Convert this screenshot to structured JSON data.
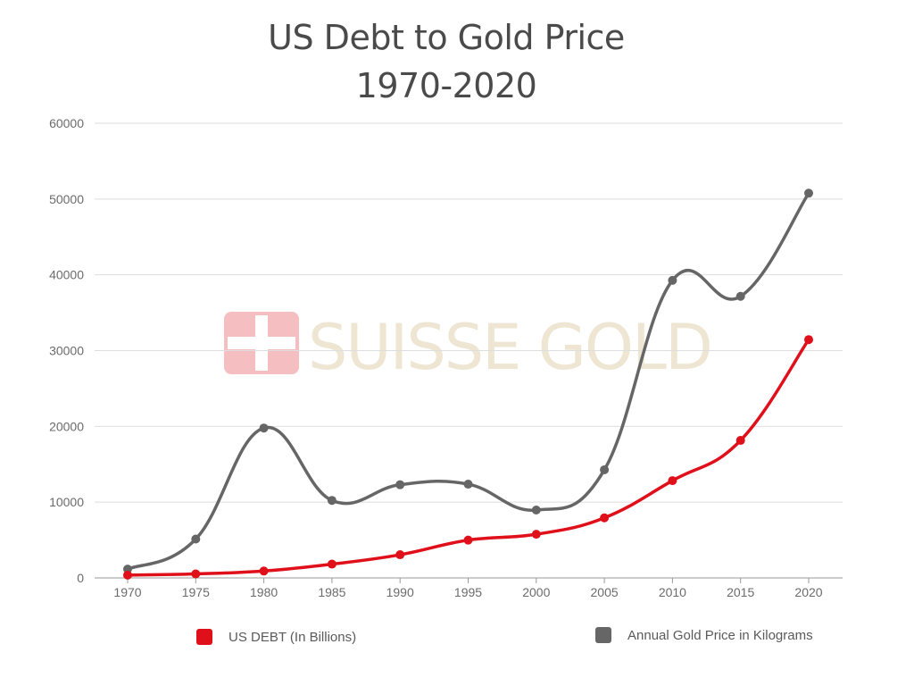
{
  "chart_data": {
    "type": "line",
    "title_line1": "US Debt to Gold Price",
    "title_line2": "1970-2020",
    "xlabel": "",
    "ylabel": "",
    "categories": [
      "1970",
      "1975",
      "1980",
      "1985",
      "1990",
      "1995",
      "2000",
      "2005",
      "2010",
      "2015",
      "2020"
    ],
    "x_tick_labels": [
      "1970",
      "1975",
      "1980",
      "1985",
      "1990",
      "1995",
      "2000",
      "2005",
      "2010",
      "2015",
      "2020"
    ],
    "y_ticks": [
      0,
      10000,
      20000,
      30000,
      40000,
      50000,
      60000
    ],
    "y_tick_labels": [
      "0",
      "10000",
      "20000",
      "30000",
      "40000",
      "50000",
      "60000"
    ],
    "ylim": [
      0,
      60000
    ],
    "grid": "horizontal",
    "legend_position": "bottom",
    "series": [
      {
        "name": "US DEBT (In Billions)",
        "color": "#e0101b",
        "values": [
          370,
          530,
          910,
          1820,
          3060,
          4990,
          5760,
          7930,
          12840,
          18150,
          31450
        ]
      },
      {
        "name": "Annual Gold Price in Kilograms",
        "color": "#666666",
        "values": [
          1160,
          5130,
          19780,
          10230,
          12300,
          12370,
          8960,
          14270,
          39270,
          37160,
          50770
        ]
      }
    ],
    "watermark": "SUISSE GOLD"
  }
}
